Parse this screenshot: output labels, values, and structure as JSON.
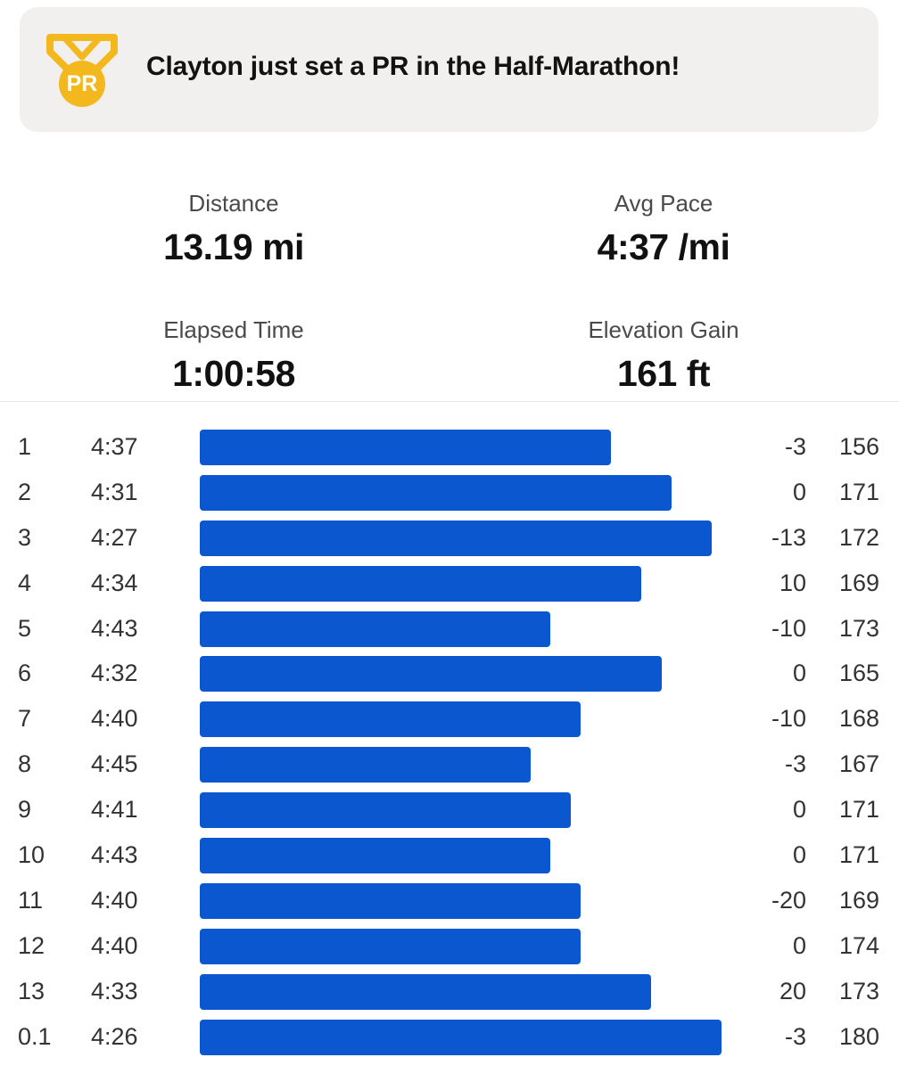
{
  "banner": {
    "text": "Clayton just set a PR in the Half-Marathon!",
    "medal_text": "PR",
    "medal_color": "#f2b81e"
  },
  "stats": {
    "distance": {
      "label": "Distance",
      "value": "13.19 mi"
    },
    "avg_pace": {
      "label": "Avg Pace",
      "value": "4:37 /mi"
    },
    "elapsed_time": {
      "label": "Elapsed Time",
      "value": "1:00:58"
    },
    "elevation_gain": {
      "label": "Elevation Gain",
      "value": "161 ft"
    }
  },
  "splits": {
    "bar_color": "#0b57d0",
    "rows": [
      {
        "mile": "1",
        "pace": "4:37",
        "elev": "-3",
        "hr": "156"
      },
      {
        "mile": "2",
        "pace": "4:31",
        "elev": "0",
        "hr": "171"
      },
      {
        "mile": "3",
        "pace": "4:27",
        "elev": "-13",
        "hr": "172"
      },
      {
        "mile": "4",
        "pace": "4:34",
        "elev": "10",
        "hr": "169"
      },
      {
        "mile": "5",
        "pace": "4:43",
        "elev": "-10",
        "hr": "173"
      },
      {
        "mile": "6",
        "pace": "4:32",
        "elev": "0",
        "hr": "165"
      },
      {
        "mile": "7",
        "pace": "4:40",
        "elev": "-10",
        "hr": "168"
      },
      {
        "mile": "8",
        "pace": "4:45",
        "elev": "-3",
        "hr": "167"
      },
      {
        "mile": "9",
        "pace": "4:41",
        "elev": "0",
        "hr": "171"
      },
      {
        "mile": "10",
        "pace": "4:43",
        "elev": "0",
        "hr": "171"
      },
      {
        "mile": "11",
        "pace": "4:40",
        "elev": "-20",
        "hr": "169"
      },
      {
        "mile": "12",
        "pace": "4:40",
        "elev": "0",
        "hr": "174"
      },
      {
        "mile": "13",
        "pace": "4:33",
        "elev": "20",
        "hr": "173"
      },
      {
        "mile": "0.1",
        "pace": "4:26",
        "elev": "-3",
        "hr": "180"
      }
    ]
  }
}
